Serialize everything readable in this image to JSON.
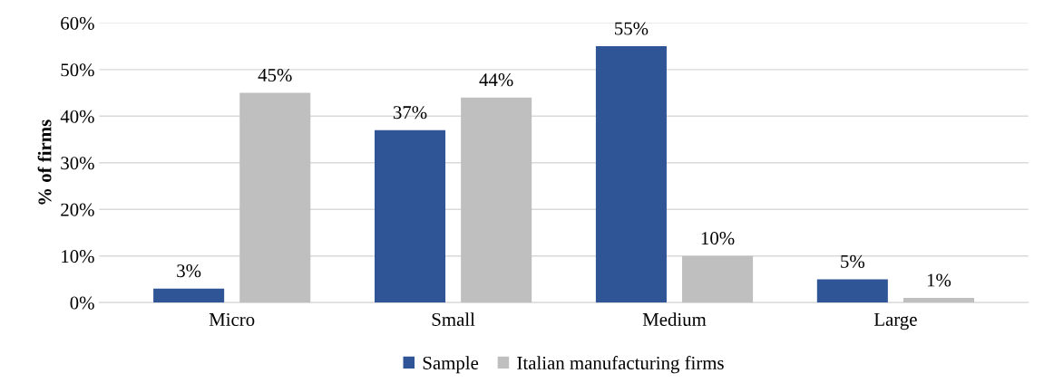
{
  "chart_data": {
    "type": "bar",
    "ylabel": "% of firms",
    "categories": [
      "Micro",
      "Small",
      "Medium",
      "Large"
    ],
    "series": [
      {
        "name": "Sample",
        "color": "#2f5597",
        "values": [
          3,
          37,
          55,
          5
        ],
        "value_labels": [
          "3%",
          "37%",
          "55%",
          "5%"
        ]
      },
      {
        "name": "Italian manufacturing firms",
        "color": "#bfbfbf",
        "values": [
          45,
          44,
          10,
          1
        ],
        "value_labels": [
          "45%",
          "44%",
          "10%",
          "1%"
        ]
      }
    ],
    "ylim": [
      0,
      60
    ],
    "yticks": [
      {
        "value": 0,
        "label": "0%"
      },
      {
        "value": 10,
        "label": "10%"
      },
      {
        "value": 20,
        "label": "20%"
      },
      {
        "value": 30,
        "label": "30%"
      },
      {
        "value": 40,
        "label": "40%"
      },
      {
        "value": 50,
        "label": "50%"
      },
      {
        "value": 60,
        "label": "60%"
      }
    ],
    "grid": "y",
    "legend": "bottom"
  }
}
